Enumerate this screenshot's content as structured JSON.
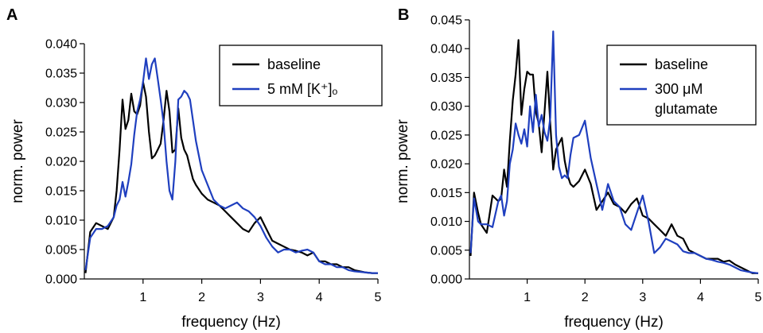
{
  "chart_data": [
    {
      "panel": "A",
      "type": "line",
      "xlabel": "frequency (Hz)",
      "ylabel": "norm. power",
      "xlim": [
        0,
        5
      ],
      "ylim": [
        0,
        0.04
      ],
      "xticks": [
        "1",
        "2",
        "3",
        "4",
        "5"
      ],
      "yticks": [
        "0.000",
        "0.005",
        "0.010",
        "0.015",
        "0.020",
        "0.025",
        "0.030",
        "0.035",
        "0.040"
      ],
      "grid": false,
      "legend_position": "top-right",
      "series": [
        {
          "name": "baseline",
          "color": "#000000",
          "x": [
            0.02,
            0.1,
            0.2,
            0.3,
            0.4,
            0.5,
            0.55,
            0.6,
            0.65,
            0.7,
            0.75,
            0.8,
            0.85,
            0.9,
            0.95,
            1.0,
            1.05,
            1.1,
            1.15,
            1.2,
            1.25,
            1.3,
            1.35,
            1.4,
            1.45,
            1.5,
            1.55,
            1.6,
            1.65,
            1.7,
            1.75,
            1.8,
            1.85,
            1.9,
            2.0,
            2.1,
            2.2,
            2.3,
            2.4,
            2.5,
            2.6,
            2.7,
            2.8,
            2.9,
            3.0,
            3.1,
            3.2,
            3.3,
            3.4,
            3.5,
            3.6,
            3.7,
            3.8,
            3.9,
            4.0,
            4.1,
            4.2,
            4.3,
            4.4,
            4.5,
            4.6,
            4.7,
            4.8,
            4.9,
            5.0
          ],
          "y": [
            0.001,
            0.008,
            0.0095,
            0.009,
            0.0085,
            0.0105,
            0.015,
            0.022,
            0.0305,
            0.0255,
            0.027,
            0.0315,
            0.0285,
            0.028,
            0.0295,
            0.0335,
            0.031,
            0.025,
            0.0205,
            0.021,
            0.022,
            0.023,
            0.027,
            0.032,
            0.0285,
            0.0215,
            0.022,
            0.029,
            0.024,
            0.022,
            0.021,
            0.019,
            0.017,
            0.016,
            0.0145,
            0.0135,
            0.013,
            0.0125,
            0.0115,
            0.0105,
            0.0095,
            0.0085,
            0.008,
            0.0095,
            0.0105,
            0.0085,
            0.0065,
            0.006,
            0.0055,
            0.005,
            0.0048,
            0.0045,
            0.004,
            0.0045,
            0.003,
            0.003,
            0.0025,
            0.0025,
            0.002,
            0.002,
            0.0015,
            0.0013,
            0.0011,
            0.001,
            0.001
          ]
        },
        {
          "name": "5 mM [K⁺]ₒ",
          "color": "#1f3fbf",
          "x": [
            0.02,
            0.1,
            0.2,
            0.3,
            0.4,
            0.5,
            0.55,
            0.6,
            0.65,
            0.7,
            0.75,
            0.8,
            0.85,
            0.9,
            0.95,
            1.0,
            1.05,
            1.1,
            1.15,
            1.2,
            1.25,
            1.3,
            1.35,
            1.4,
            1.45,
            1.5,
            1.55,
            1.6,
            1.65,
            1.7,
            1.75,
            1.8,
            1.85,
            1.9,
            2.0,
            2.1,
            2.2,
            2.3,
            2.4,
            2.5,
            2.6,
            2.7,
            2.8,
            2.9,
            3.0,
            3.1,
            3.2,
            3.3,
            3.4,
            3.5,
            3.6,
            3.7,
            3.8,
            3.9,
            4.0,
            4.1,
            4.2,
            4.3,
            4.4,
            4.5,
            4.6,
            4.7,
            4.8,
            4.9,
            5.0
          ],
          "y": [
            0.0015,
            0.007,
            0.0085,
            0.0085,
            0.009,
            0.0105,
            0.0125,
            0.0135,
            0.0165,
            0.014,
            0.0165,
            0.0195,
            0.0245,
            0.0285,
            0.0305,
            0.0335,
            0.0375,
            0.034,
            0.0365,
            0.0375,
            0.034,
            0.0305,
            0.0265,
            0.02,
            0.015,
            0.0135,
            0.02,
            0.0305,
            0.031,
            0.032,
            0.0315,
            0.0305,
            0.027,
            0.0235,
            0.0185,
            0.016,
            0.0135,
            0.0125,
            0.012,
            0.0125,
            0.013,
            0.012,
            0.0115,
            0.0105,
            0.009,
            0.007,
            0.0055,
            0.0045,
            0.005,
            0.005,
            0.0045,
            0.0048,
            0.005,
            0.0045,
            0.003,
            0.0025,
            0.0025,
            0.002,
            0.002,
            0.0015,
            0.0013,
            0.0012,
            0.0011,
            0.001,
            0.001
          ]
        }
      ]
    },
    {
      "panel": "B",
      "type": "line",
      "xlabel": "frequency (Hz)",
      "ylabel": "norm. power",
      "xlim": [
        0,
        5
      ],
      "ylim": [
        0,
        0.045
      ],
      "xticks": [
        "1",
        "2",
        "3",
        "4",
        "5"
      ],
      "yticks": [
        "0.000",
        "0.005",
        "0.010",
        "0.015",
        "0.020",
        "0.025",
        "0.030",
        "0.035",
        "0.040",
        "0.045"
      ],
      "grid": false,
      "legend_position": "top-right",
      "series": [
        {
          "name": "baseline",
          "color": "#000000",
          "x": [
            0.02,
            0.08,
            0.15,
            0.2,
            0.3,
            0.4,
            0.5,
            0.55,
            0.6,
            0.65,
            0.7,
            0.75,
            0.8,
            0.85,
            0.9,
            0.95,
            1.0,
            1.05,
            1.1,
            1.15,
            1.2,
            1.25,
            1.3,
            1.35,
            1.4,
            1.45,
            1.5,
            1.55,
            1.6,
            1.65,
            1.7,
            1.75,
            1.8,
            1.9,
            2.0,
            2.1,
            2.2,
            2.3,
            2.4,
            2.5,
            2.6,
            2.7,
            2.8,
            2.9,
            3.0,
            3.1,
            3.2,
            3.3,
            3.4,
            3.5,
            3.6,
            3.7,
            3.8,
            3.9,
            4.0,
            4.1,
            4.2,
            4.3,
            4.4,
            4.5,
            4.6,
            4.7,
            4.8,
            4.9,
            5.0
          ],
          "y": [
            0.004,
            0.015,
            0.0115,
            0.0095,
            0.008,
            0.0145,
            0.0135,
            0.014,
            0.019,
            0.016,
            0.024,
            0.031,
            0.0355,
            0.0415,
            0.0285,
            0.033,
            0.036,
            0.0355,
            0.0355,
            0.029,
            0.027,
            0.022,
            0.029,
            0.036,
            0.027,
            0.019,
            0.0225,
            0.0235,
            0.0245,
            0.0205,
            0.018,
            0.0165,
            0.016,
            0.017,
            0.019,
            0.0165,
            0.012,
            0.0135,
            0.015,
            0.013,
            0.0125,
            0.0115,
            0.013,
            0.014,
            0.011,
            0.0105,
            0.0095,
            0.0085,
            0.0075,
            0.0095,
            0.0075,
            0.007,
            0.005,
            0.0045,
            0.004,
            0.0035,
            0.0035,
            0.0035,
            0.003,
            0.0032,
            0.0025,
            0.002,
            0.0015,
            0.001,
            0.001
          ]
        },
        {
          "name": "300 μM glutamate",
          "color": "#1f3fbf",
          "x": [
            0.02,
            0.08,
            0.15,
            0.2,
            0.3,
            0.4,
            0.5,
            0.55,
            0.6,
            0.65,
            0.7,
            0.75,
            0.8,
            0.85,
            0.9,
            0.95,
            1.0,
            1.05,
            1.1,
            1.15,
            1.2,
            1.25,
            1.3,
            1.35,
            1.4,
            1.45,
            1.5,
            1.55,
            1.6,
            1.65,
            1.7,
            1.75,
            1.8,
            1.9,
            2.0,
            2.1,
            2.2,
            2.3,
            2.4,
            2.5,
            2.6,
            2.7,
            2.8,
            2.9,
            3.0,
            3.1,
            3.2,
            3.3,
            3.4,
            3.5,
            3.6,
            3.7,
            3.8,
            3.9,
            4.0,
            4.1,
            4.2,
            4.3,
            4.4,
            4.5,
            4.6,
            4.7,
            4.8,
            4.9,
            5.0
          ],
          "y": [
            0.0045,
            0.014,
            0.01,
            0.0095,
            0.0095,
            0.009,
            0.0135,
            0.0145,
            0.011,
            0.0135,
            0.02,
            0.0225,
            0.027,
            0.025,
            0.0235,
            0.026,
            0.023,
            0.03,
            0.0255,
            0.032,
            0.0265,
            0.0285,
            0.0255,
            0.024,
            0.028,
            0.043,
            0.025,
            0.0195,
            0.0175,
            0.018,
            0.0175,
            0.0215,
            0.0245,
            0.025,
            0.0275,
            0.021,
            0.0165,
            0.012,
            0.0165,
            0.0135,
            0.0125,
            0.0095,
            0.0085,
            0.0115,
            0.0145,
            0.01,
            0.0045,
            0.0055,
            0.007,
            0.0065,
            0.006,
            0.0048,
            0.0045,
            0.0045,
            0.004,
            0.0035,
            0.0033,
            0.003,
            0.0028,
            0.0025,
            0.002,
            0.0015,
            0.0013,
            0.0011,
            0.001
          ]
        }
      ]
    }
  ]
}
